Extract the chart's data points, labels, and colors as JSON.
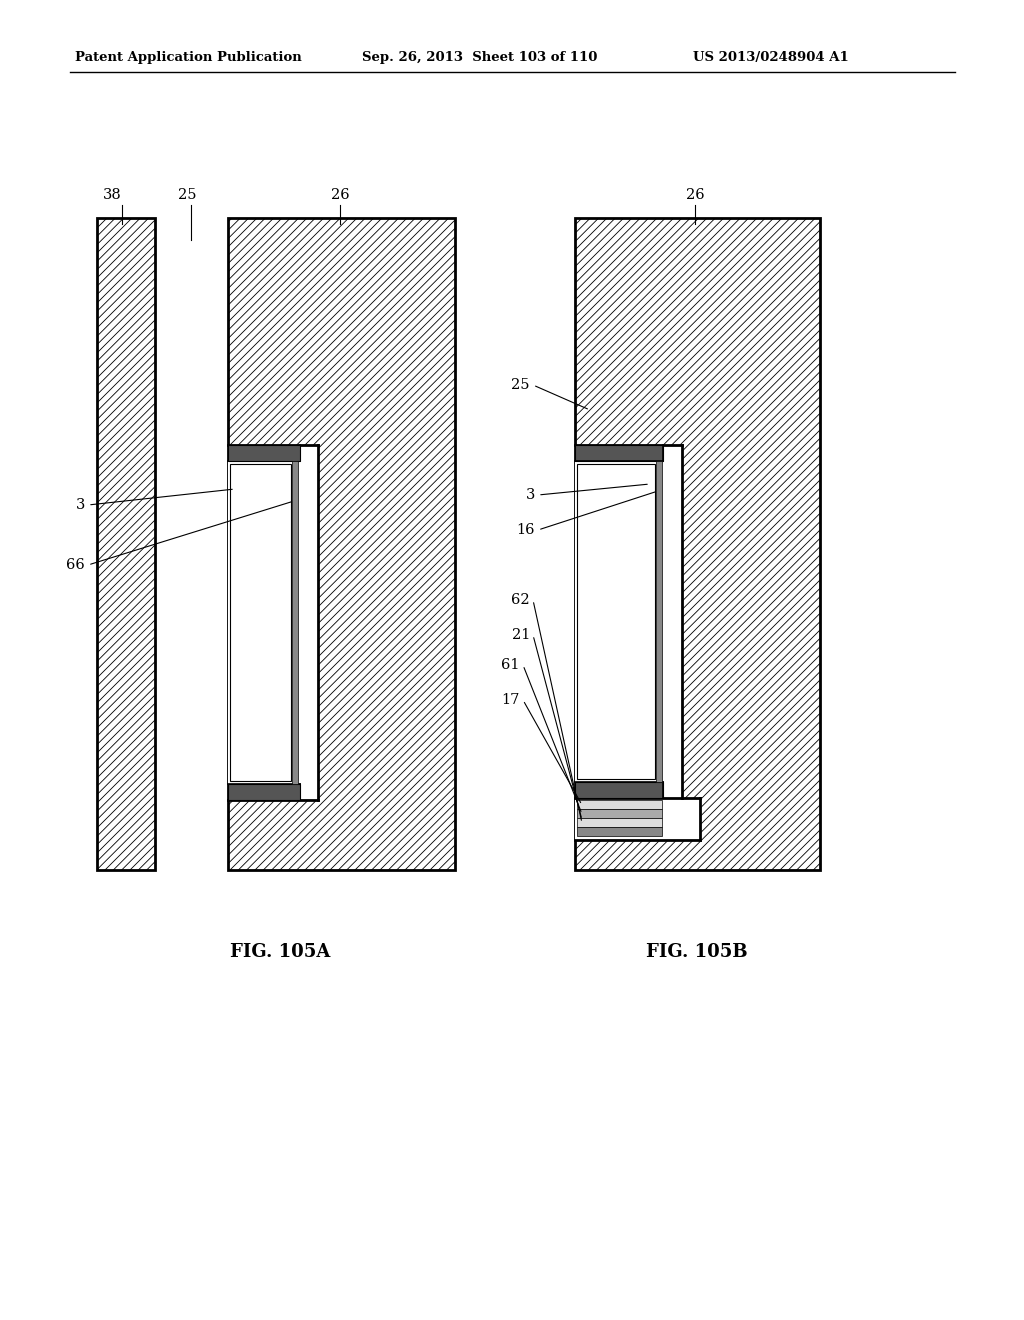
{
  "header_left": "Patent Application Publication",
  "header_mid": "Sep. 26, 2013  Sheet 103 of 110",
  "header_right": "US 2013/0248904 A1",
  "fig_a_label": "FIG. 105A",
  "fig_b_label": "FIG. 105B",
  "bg_color": "#ffffff",
  "line_color": "#000000",
  "hatch_pattern": "////",
  "hatch_lw": 0.5
}
